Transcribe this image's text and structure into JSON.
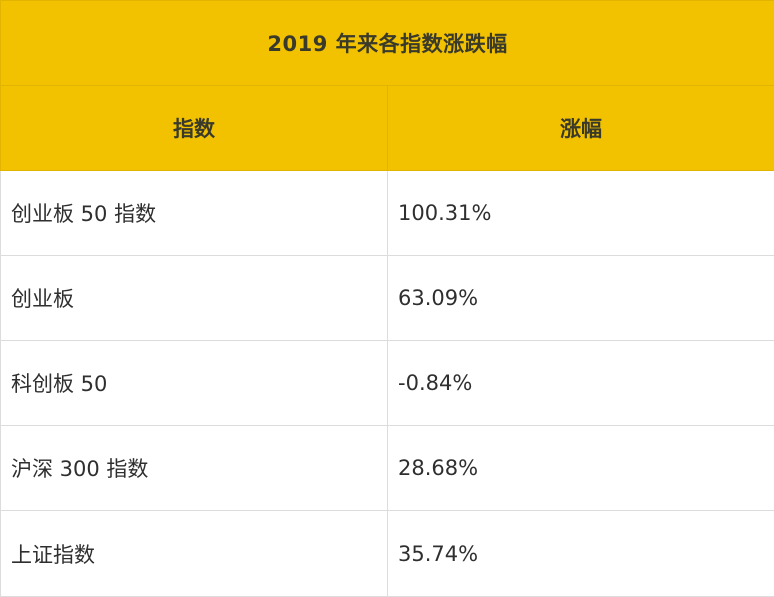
{
  "table": {
    "title": "2019 年来各指数涨跌幅",
    "headers": [
      "指数",
      "涨幅"
    ],
    "rows": [
      {
        "index": "创业板 50 指数",
        "change": "100.31%"
      },
      {
        "index": "创业板",
        "change": "63.09%"
      },
      {
        "index": "科创板 50",
        "change": "-0.84%"
      },
      {
        "index": "沪深 300 指数",
        "change": "28.68%"
      },
      {
        "index": "上证指数",
        "change": "35.74%"
      }
    ]
  },
  "colors": {
    "header_bg": "#f2c200",
    "header_text": "#3a3a2a",
    "border": "#dcdcdc",
    "body_text": "#2f2f2f"
  }
}
